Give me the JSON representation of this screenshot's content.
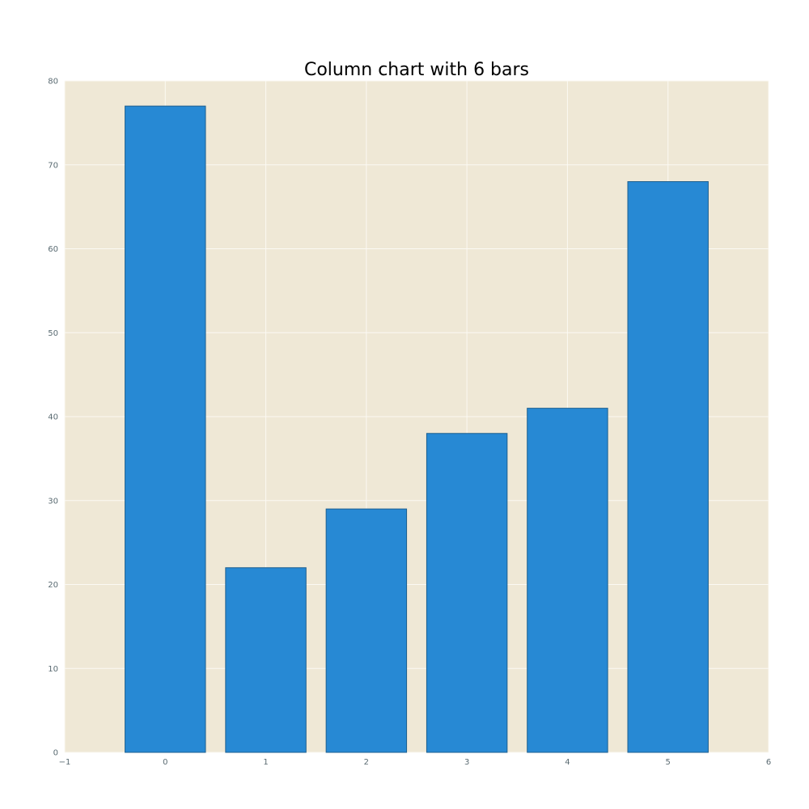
{
  "chart_data": {
    "type": "bar",
    "title": "Column chart with 6 bars",
    "xlabel": "",
    "ylabel": "",
    "categories": [
      0,
      1,
      2,
      3,
      4,
      5
    ],
    "values": [
      77,
      22,
      29,
      38,
      41,
      68
    ],
    "xlim": [
      -1,
      6
    ],
    "ylim": [
      0,
      80
    ],
    "x_ticks": [
      "−1",
      "0",
      "1",
      "2",
      "3",
      "4",
      "5",
      "6"
    ],
    "x_tick_values": [
      -1,
      0,
      1,
      2,
      3,
      4,
      5,
      6
    ],
    "y_ticks": [
      "0",
      "10",
      "20",
      "30",
      "40",
      "50",
      "60",
      "70",
      "80"
    ],
    "y_tick_values": [
      0,
      10,
      20,
      30,
      40,
      50,
      60,
      70,
      80
    ],
    "bar_width": 0.8,
    "grid": true,
    "colors": {
      "bar_fill": "#2789d4",
      "bar_edge": "#1c5f8f",
      "plot_background": "#efe8d6",
      "grid": "#fbf9f3",
      "tick_text": "#5a6b72"
    }
  }
}
